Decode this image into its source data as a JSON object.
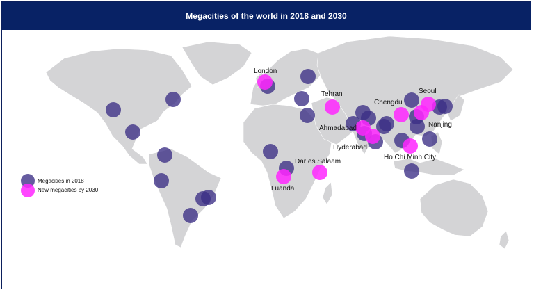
{
  "title": "Megacities of the world in 2018 and 2030",
  "colors": {
    "header_bg": "#082265",
    "land": "#d4d4d6",
    "megacity_2018": "#3b2e85",
    "megacity_2030": "#ff26ff"
  },
  "legend": {
    "items": [
      {
        "label": "Megacities in 2018",
        "color": "#3b2e85"
      },
      {
        "label": "New megacities by 2030",
        "color": "#ff26ff"
      }
    ]
  },
  "labels": {
    "london": "London",
    "tehran": "Tehran",
    "chengdu": "Chengdu",
    "seoul": "Seoul",
    "ahmadabad": "Ahmadabad",
    "nanjing": "Nanjing",
    "hyderabad": "Hyderabad",
    "dar_es_salaam": "Dar es Salaam",
    "ho_chi_minh_city": "Ho Chi Minh City",
    "luanda": "Luanda"
  }
}
